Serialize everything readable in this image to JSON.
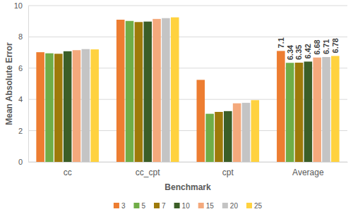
{
  "chart_data": {
    "type": "bar",
    "x_label": "Benchmark",
    "y_label": "Mean Absolute Error",
    "categories": [
      "cc",
      "cc_cpt",
      "cpt",
      "Average"
    ],
    "series": [
      {
        "name": "3",
        "color": "#ED7D31",
        "values": [
          7.02,
          9.1,
          5.25,
          7.1
        ],
        "value_labels": [
          null,
          null,
          null,
          "7.1"
        ]
      },
      {
        "name": "5",
        "color": "#70AD47",
        "values": [
          6.95,
          9.02,
          3.08,
          6.34
        ],
        "value_labels": [
          null,
          null,
          null,
          "6.34"
        ]
      },
      {
        "name": "7",
        "color": "#9E7A0A",
        "values": [
          6.92,
          8.95,
          3.2,
          6.35
        ],
        "value_labels": [
          null,
          null,
          null,
          "6.35"
        ]
      },
      {
        "name": "10",
        "color": "#3B5E27",
        "values": [
          7.08,
          8.98,
          3.25,
          6.42
        ],
        "value_labels": [
          null,
          null,
          null,
          "6.42"
        ]
      },
      {
        "name": "15",
        "color": "#F4A97C",
        "values": [
          7.15,
          9.15,
          3.75,
          6.68
        ],
        "value_labels": [
          null,
          null,
          null,
          "6.68"
        ]
      },
      {
        "name": "20",
        "color": "#C4C4C4",
        "values": [
          7.22,
          9.2,
          3.78,
          6.71
        ],
        "value_labels": [
          null,
          null,
          null,
          "6.71"
        ]
      },
      {
        "name": "25",
        "color": "#FFD23F",
        "values": [
          7.2,
          9.25,
          3.95,
          6.78
        ],
        "value_labels": [
          null,
          null,
          null,
          "6.78"
        ]
      }
    ],
    "ylim": [
      0,
      10
    ],
    "yticks": [
      0,
      2,
      4,
      6,
      8,
      10
    ],
    "grid": true,
    "legend": "bottom",
    "data_labels": true
  }
}
